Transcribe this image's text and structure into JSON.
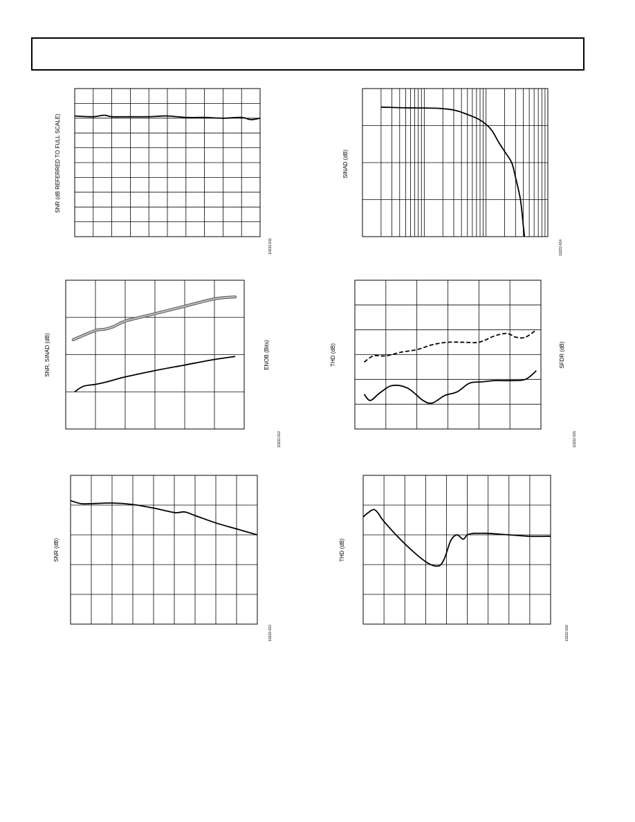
{
  "charts": [
    {
      "id": "c1",
      "chart_data": {
        "type": "line",
        "title": "",
        "ylabel": "SNR (dB REFERRED TO FULL SCALE)",
        "xlabel": "",
        "figure_code": "10222-011",
        "xlim": [
          0,
          10
        ],
        "ylim": [
          0,
          10
        ],
        "x_log": false,
        "x_div": 10,
        "y_div": 10,
        "grid": true,
        "series": [
          {
            "style": "solid",
            "x": [
              0,
              1,
              1.6,
              2,
              3,
              4,
              5,
              6,
              7,
              8,
              9,
              9.5,
              10
            ],
            "y": [
              8.15,
              8.1,
              8.2,
              8.1,
              8.1,
              8.1,
              8.15,
              8.05,
              8.05,
              8.0,
              8.05,
              7.9,
              8.0
            ]
          }
        ]
      }
    },
    {
      "id": "c2",
      "chart_data": {
        "type": "line",
        "title": "",
        "ylabel": "SINAD (dB)",
        "xlabel": "",
        "figure_code": "10222-014",
        "xlim": [
          1,
          1000
        ],
        "ylim": [
          0,
          4
        ],
        "x_log": true,
        "x_div": 3,
        "y_div": 4,
        "grid": true,
        "series": [
          {
            "style": "solid",
            "x": [
              2,
              5,
              15,
              30,
              50,
              80,
              120,
              160,
              200,
              260,
              300,
              360,
              400,
              420
            ],
            "y": [
              3.5,
              3.48,
              3.47,
              3.42,
              3.3,
              3.15,
              2.9,
              2.55,
              2.3,
              2.0,
              1.6,
              1.0,
              0.3,
              0.0
            ]
          }
        ]
      }
    },
    {
      "id": "c3",
      "chart_data": {
        "type": "line",
        "title": "",
        "ylabel": "SNR, SINAD (dB)",
        "y2label": "ENOB (Bits)",
        "xlabel": "",
        "figure_code": "10222-012",
        "xlim": [
          0,
          6
        ],
        "ylim": [
          0,
          4
        ],
        "x_log": false,
        "x_div": 6,
        "y_div": 4,
        "grid": true,
        "series": [
          {
            "style": "thick-gray",
            "x": [
              0.25,
              1,
              1.3,
              1.6,
              2,
              3,
              4,
              5,
              5.7
            ],
            "y": [
              2.4,
              2.65,
              2.68,
              2.75,
              2.9,
              3.1,
              3.3,
              3.5,
              3.55
            ]
          },
          {
            "style": "solid",
            "x": [
              0.3,
              0.6,
              1,
              1.4,
              2,
              3,
              4,
              5,
              5.7
            ],
            "y": [
              1.0,
              1.15,
              1.2,
              1.27,
              1.4,
              1.57,
              1.72,
              1.87,
              1.95
            ]
          }
        ]
      }
    },
    {
      "id": "c4",
      "chart_data": {
        "type": "line",
        "title": "",
        "ylabel": "THD (dB)",
        "y2label": "SFDR (dB)",
        "xlabel": "",
        "figure_code": "10222-015",
        "xlim": [
          0,
          6
        ],
        "ylim": [
          0,
          6
        ],
        "x_log": false,
        "x_div": 6,
        "y_div": 6,
        "grid": true,
        "series": [
          {
            "style": "dashed",
            "x": [
              0.3,
              0.6,
              1,
              1.5,
              2,
              2.5,
              3,
              3.5,
              4,
              4.5,
              4.9,
              5.2,
              5.5,
              5.85
            ],
            "y": [
              2.7,
              2.95,
              2.95,
              3.1,
              3.2,
              3.4,
              3.5,
              3.5,
              3.5,
              3.75,
              3.85,
              3.7,
              3.7,
              4.0
            ]
          },
          {
            "style": "solid",
            "x": [
              0.3,
              0.5,
              0.8,
              1.2,
              1.7,
              2.2,
              2.5,
              2.9,
              3.3,
              3.7,
              4.1,
              4.5,
              5,
              5.5,
              5.85
            ],
            "y": [
              1.4,
              1.15,
              1.45,
              1.75,
              1.65,
              1.15,
              1.05,
              1.35,
              1.5,
              1.85,
              1.9,
              1.95,
              1.95,
              2.0,
              2.35
            ]
          }
        ]
      }
    },
    {
      "id": "c5",
      "chart_data": {
        "type": "line",
        "title": "",
        "ylabel": "SNR (dB)",
        "xlabel": "",
        "figure_code": "10222-013",
        "xlim": [
          0,
          9
        ],
        "ylim": [
          0,
          5
        ],
        "x_log": false,
        "x_div": 9,
        "y_div": 5,
        "grid": true,
        "series": [
          {
            "style": "solid",
            "x": [
              0,
              0.5,
              1,
              2,
              3,
              4,
              5,
              5.5,
              6,
              7,
              8,
              9
            ],
            "y": [
              4.15,
              4.05,
              4.05,
              4.07,
              4.02,
              3.9,
              3.75,
              3.77,
              3.65,
              3.4,
              3.2,
              3.0
            ]
          }
        ]
      }
    },
    {
      "id": "c6",
      "chart_data": {
        "type": "line",
        "title": "",
        "ylabel": "THD (dB)",
        "xlabel": "",
        "figure_code": "10222-016",
        "xlim": [
          0,
          9
        ],
        "ylim": [
          0,
          5
        ],
        "x_log": false,
        "x_div": 9,
        "y_div": 5,
        "grid": true,
        "series": [
          {
            "style": "solid",
            "x": [
              0,
              0.25,
              0.5,
              0.7,
              1,
              2,
              3,
              3.6,
              3.9,
              4.2,
              4.5,
              4.8,
              5,
              5.3,
              5.5,
              6,
              7,
              8,
              9
            ],
            "y": [
              3.6,
              3.75,
              3.85,
              3.75,
              3.45,
              2.7,
              2.1,
              1.95,
              2.2,
              2.8,
              3.0,
              2.85,
              3.0,
              3.05,
              3.05,
              3.05,
              3.0,
              2.95,
              2.95
            ]
          }
        ]
      }
    }
  ]
}
